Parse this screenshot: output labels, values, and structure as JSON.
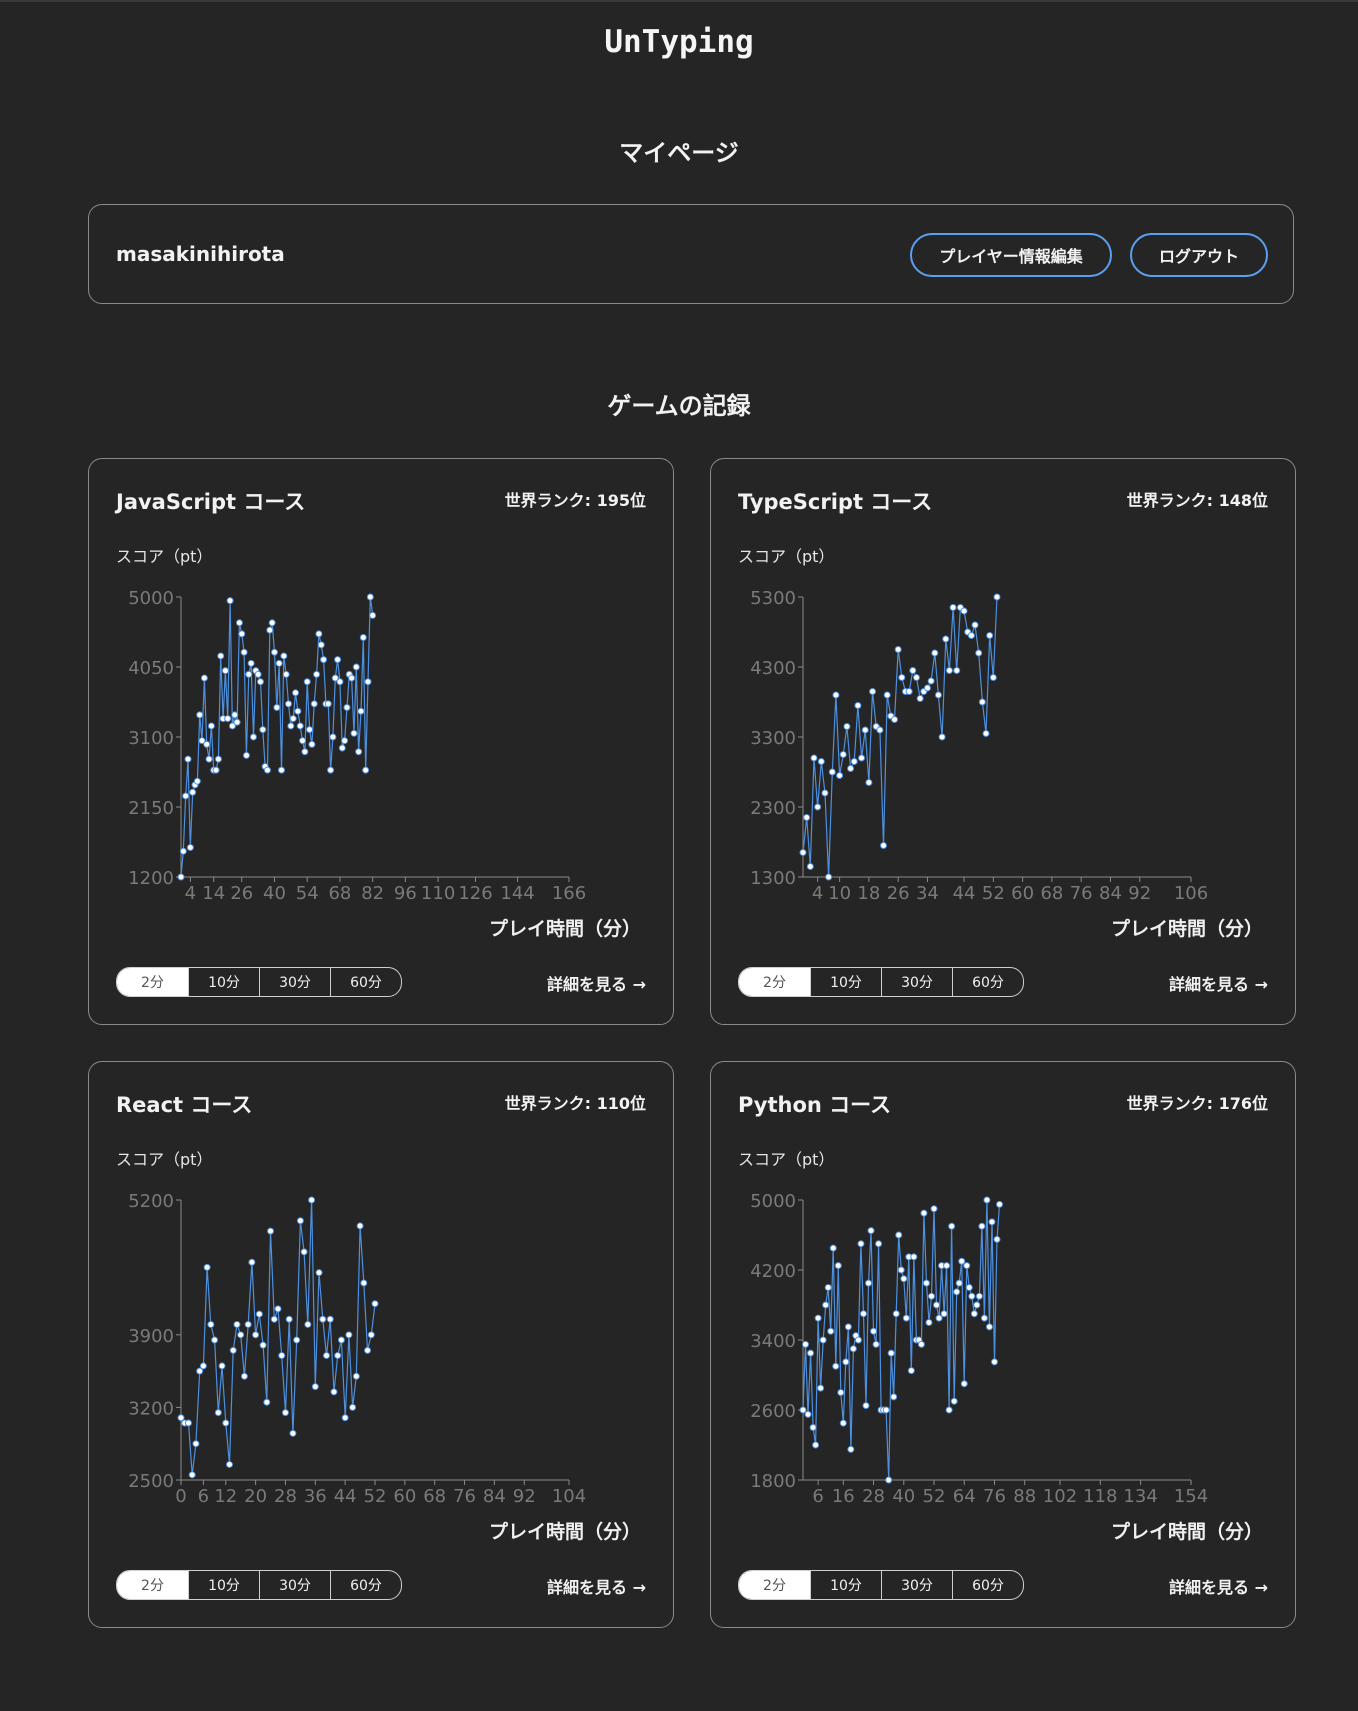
{
  "app": {
    "title": "UnTyping"
  },
  "page": {
    "heading": "マイページ",
    "records_heading": "ゲームの記録"
  },
  "user": {
    "name": "masakinihirota",
    "edit_button": "プレイヤー情報編集",
    "logout_button": "ログアウト"
  },
  "colors": {
    "background": "#252525",
    "accent": "#5aa0f0",
    "line": "#4d90e0",
    "point": "#ffffff"
  },
  "courses": [
    {
      "title": "JavaScript コース",
      "rank": "世界ランク: 195位",
      "score_label": "スコア（pt）",
      "xlabel": "プレイ時間（分）",
      "segments": [
        "2分",
        "10分",
        "30分",
        "60分"
      ],
      "active_segment": 0,
      "detail_link": "詳細を見る →"
    },
    {
      "title": "TypeScript コース",
      "rank": "世界ランク: 148位",
      "score_label": "スコア（pt）",
      "xlabel": "プレイ時間（分）",
      "segments": [
        "2分",
        "10分",
        "30分",
        "60分"
      ],
      "active_segment": 0,
      "detail_link": "詳細を見る →"
    },
    {
      "title": "React コース",
      "rank": "世界ランク: 110位",
      "score_label": "スコア（pt）",
      "xlabel": "プレイ時間（分）",
      "segments": [
        "2分",
        "10分",
        "30分",
        "60分"
      ],
      "active_segment": 0,
      "detail_link": "詳細を見る →"
    },
    {
      "title": "Python コース",
      "rank": "世界ランク: 176位",
      "score_label": "スコア（pt）",
      "xlabel": "プレイ時間（分）",
      "segments": [
        "2分",
        "10分",
        "30分",
        "60分"
      ],
      "active_segment": 0,
      "detail_link": "詳細を見る →"
    }
  ],
  "chart_data": [
    {
      "type": "line",
      "course": "JavaScript コース",
      "ylabel": "スコア（pt）",
      "xlabel": "プレイ時間（分）",
      "ylim": [
        1200,
        5000
      ],
      "yticks": [
        1200,
        2150,
        3100,
        4050,
        5000
      ],
      "xticks": [
        4,
        14,
        26,
        40,
        54,
        68,
        82,
        96,
        110,
        126,
        144,
        166
      ],
      "y": [
        1200,
        1550,
        2300,
        2800,
        1600,
        2350,
        2450,
        2500,
        3400,
        3050,
        3900,
        3000,
        2800,
        3250,
        2650,
        2650,
        2800,
        4200,
        3350,
        4000,
        3350,
        4950,
        3250,
        3400,
        3300,
        4650,
        4500,
        4250,
        2850,
        3950,
        4100,
        3100,
        4000,
        3950,
        3850,
        3200,
        2700,
        2650,
        4550,
        4650,
        4250,
        3500,
        4100,
        2650,
        4200,
        3950,
        3550,
        3250,
        3350,
        3700,
        3450,
        3250,
        3050,
        2900,
        3850,
        3200,
        3000,
        3550,
        3950,
        4500,
        4350,
        4150,
        3550,
        3550,
        2650,
        3100,
        3900,
        4150,
        3850,
        2950,
        3050,
        3500,
        3950,
        3900,
        3150,
        4050,
        2900,
        3450,
        4450,
        2650,
        3850,
        5000,
        4750
      ]
    },
    {
      "type": "line",
      "course": "TypeScript コース",
      "ylabel": "スコア（pt）",
      "xlabel": "プレイ時間（分）",
      "ylim": [
        1300,
        5300
      ],
      "yticks": [
        1300,
        2300,
        3300,
        4300,
        5300
      ],
      "xticks": [
        4,
        10,
        18,
        26,
        34,
        44,
        52,
        60,
        68,
        76,
        84,
        92,
        106
      ],
      "y": [
        1650,
        2150,
        1450,
        3000,
        2300,
        2950,
        2500,
        1300,
        2800,
        3900,
        2750,
        3050,
        3450,
        2850,
        2950,
        3750,
        3000,
        3400,
        2650,
        3950,
        3450,
        3400,
        1750,
        3900,
        3600,
        3550,
        4550,
        4150,
        3950,
        3950,
        4250,
        4150,
        3850,
        3950,
        4000,
        4100,
        4500,
        3900,
        3300,
        4700,
        4250,
        5150,
        4250,
        5150,
        5100,
        4800,
        4750,
        4900,
        4500,
        3800,
        3350,
        4750,
        4150,
        5300
      ]
    },
    {
      "type": "line",
      "course": "React コース",
      "ylabel": "スコア（pt）",
      "xlabel": "プレイ時間（分）",
      "ylim": [
        2500,
        5200
      ],
      "yticks": [
        2500,
        3200,
        3900,
        5200
      ],
      "xticks": [
        0,
        6,
        12,
        20,
        28,
        36,
        44,
        52,
        60,
        68,
        76,
        84,
        92,
        104
      ],
      "y": [
        3100,
        3050,
        3050,
        2550,
        2850,
        3550,
        3600,
        4550,
        4000,
        3850,
        3150,
        3600,
        3050,
        2650,
        3750,
        4000,
        3900,
        3500,
        4000,
        4600,
        3900,
        4100,
        3800,
        3250,
        4900,
        4050,
        4150,
        3700,
        3150,
        4050,
        2950,
        3850,
        5000,
        4700,
        4000,
        5200,
        3400,
        4500,
        4050,
        3700,
        4050,
        3350,
        3700,
        3850,
        3100,
        3900,
        3200,
        3500,
        4950,
        4400,
        3750,
        3900,
        4200
      ]
    },
    {
      "type": "line",
      "course": "Python コース",
      "ylabel": "スコア（pt）",
      "xlabel": "プレイ時間（分）",
      "ylim": [
        1800,
        5000
      ],
      "yticks": [
        1800,
        2600,
        3400,
        4200,
        5000
      ],
      "xticks": [
        6,
        16,
        28,
        40,
        52,
        64,
        76,
        88,
        102,
        118,
        134,
        154
      ],
      "y": [
        2600,
        3350,
        2550,
        3250,
        2400,
        2200,
        3650,
        2850,
        3400,
        3800,
        4000,
        3500,
        4450,
        3100,
        4250,
        2800,
        2450,
        3150,
        3550,
        2150,
        3300,
        3450,
        3400,
        4500,
        3700,
        2650,
        4050,
        4650,
        3500,
        3350,
        4500,
        2600,
        2600,
        2600,
        1800,
        3250,
        2750,
        3700,
        4600,
        4200,
        4100,
        3650,
        4350,
        3050,
        4350,
        3400,
        3400,
        3350,
        4850,
        4050,
        3600,
        3900,
        4900,
        3800,
        3650,
        4250,
        3700,
        4250,
        2600,
        4700,
        2700,
        3950,
        4050,
        4300,
        2900,
        4250,
        4000,
        3900,
        3700,
        3800,
        3900,
        4700,
        3650,
        5000,
        3550,
        4750,
        3150,
        4550,
        4950
      ]
    }
  ]
}
